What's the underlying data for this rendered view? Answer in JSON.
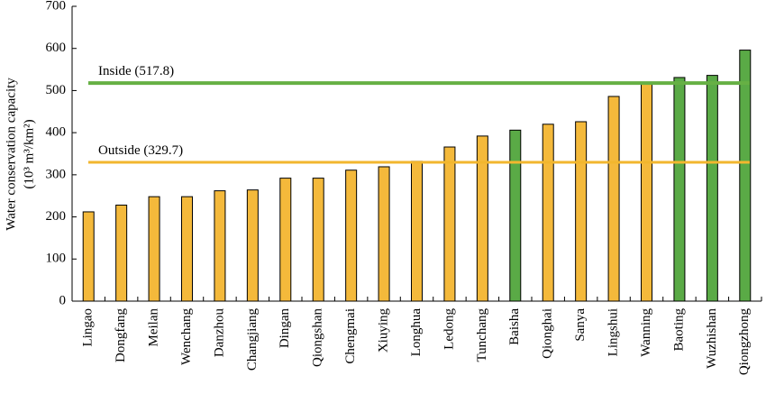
{
  "chart_data": {
    "type": "bar",
    "categories": [
      "Lingao",
      "Dongfang",
      "Meilan",
      "Wenchang",
      "Danzhou",
      "Changjiang",
      "Dingan",
      "Qiongshan",
      "Chengmai",
      "Xiuying",
      "Longhua",
      "Ledong",
      "Tunchang",
      "Baisha",
      "Qionghai",
      "Sanya",
      "Lingshui",
      "Wanning",
      "Baoting",
      "Wuzhishan",
      "Qiongzhong"
    ],
    "values": [
      212,
      228,
      248,
      248,
      262,
      264,
      292,
      292,
      311,
      319,
      332,
      366,
      392,
      406,
      420,
      426,
      486,
      519,
      531,
      536,
      596
    ],
    "bar_groups": [
      "outside",
      "outside",
      "outside",
      "outside",
      "outside",
      "outside",
      "outside",
      "outside",
      "outside",
      "outside",
      "outside",
      "outside",
      "outside",
      "inside",
      "outside",
      "outside",
      "outside",
      "outside",
      "inside",
      "inside",
      "inside"
    ],
    "colors": {
      "outside": "#F4B93B",
      "inside": "#5AAA46",
      "outside_line": "#F2B62E",
      "inside_line": "#66B044",
      "bar_stroke": "#000000"
    },
    "ylabel": "Water conservation capacity",
    "ylabel_units": "(10³ m³/km²)",
    "ylim": [
      0,
      700
    ],
    "yticks": [
      "0",
      "100",
      "200",
      "300",
      "400",
      "500",
      "600",
      "700"
    ],
    "reference_lines": [
      {
        "label": "Inside (517.8)",
        "value": 517.8,
        "group": "inside"
      },
      {
        "label": "Outside (329.7)",
        "value": 329.7,
        "group": "outside"
      }
    ],
    "grid": false,
    "legend": "none"
  }
}
